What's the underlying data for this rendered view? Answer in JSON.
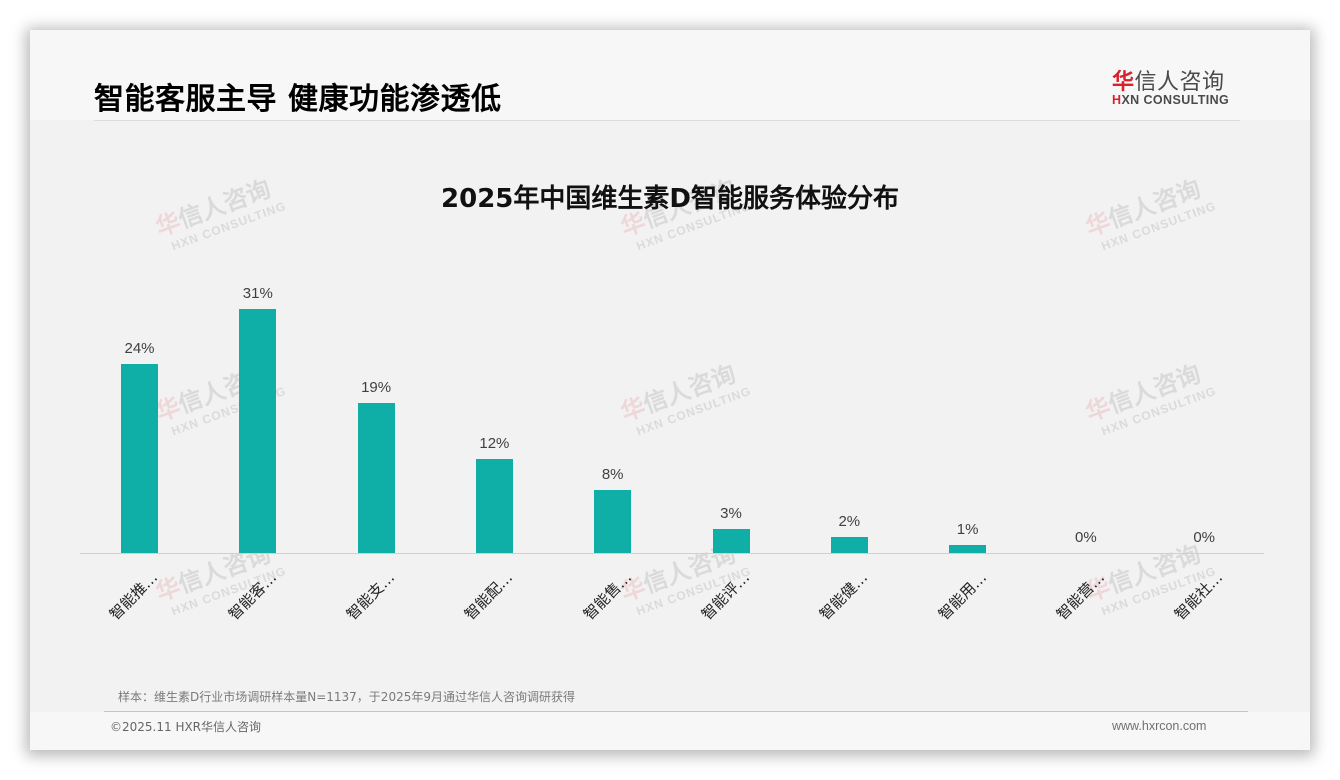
{
  "header": {
    "title": "智能客服主导 健康功能渗透低",
    "logo": {
      "cn_first": "华",
      "cn_rest": "信人咨询",
      "en_first": "H",
      "en_rest": "XN CONSULTING"
    }
  },
  "watermark": {
    "cn_first": "华",
    "cn_rest": "信人咨询",
    "en": "HXN CONSULTING"
  },
  "colors": {
    "bar": "#0fafa8",
    "brand_red": "#d9212a",
    "background": "#f2f2f2"
  },
  "chart_data": {
    "type": "bar",
    "title": "2025年中国维生素D智能服务体验分布",
    "categories": [
      "智能推…",
      "智能客…",
      "智能支…",
      "智能配…",
      "智能售…",
      "智能评…",
      "智能健…",
      "智能用…",
      "智能营…",
      "智能社…"
    ],
    "values": [
      24,
      31,
      19,
      12,
      8,
      3,
      2,
      1,
      0,
      0
    ],
    "value_labels": [
      "24%",
      "31%",
      "19%",
      "12%",
      "8%",
      "3%",
      "2%",
      "1%",
      "0%",
      "0%"
    ],
    "xlabel": "",
    "ylabel": "",
    "ylim": [
      0,
      35
    ],
    "grid": false,
    "legend": null,
    "unit": "%"
  },
  "footer": {
    "note": "样本：维生素D行业市场调研样本量N=1137，于2025年9月通过华信人咨询调研获得",
    "copyright": "©2025.11 HXR华信人咨询",
    "website": "www.hxrcon.com"
  }
}
